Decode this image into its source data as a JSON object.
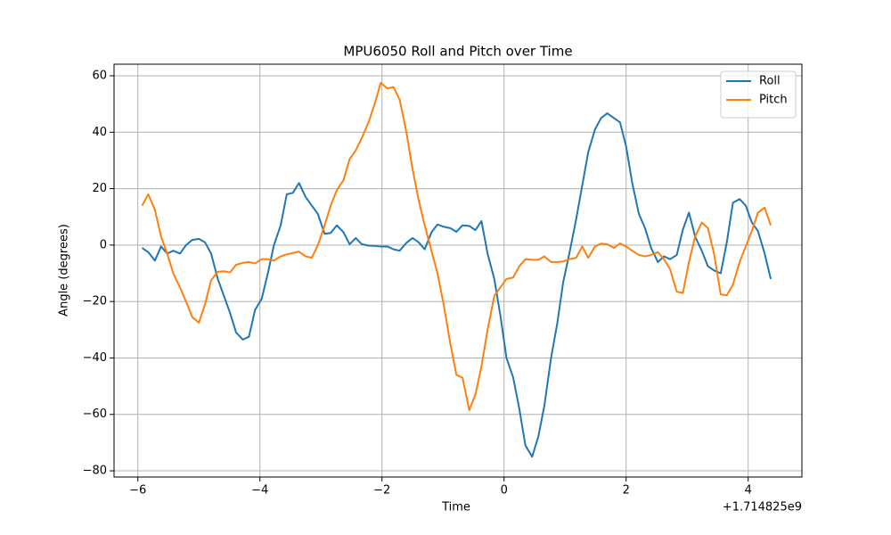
{
  "chart_data": {
    "type": "line",
    "title": "MPU6050 Roll and Pitch over Time",
    "x_label": "Time",
    "y_label": "Angle (degrees)",
    "x_offset_label": "+1.714825e9",
    "x": [
      -5.93,
      -5.83,
      -5.72,
      -5.62,
      -5.52,
      -5.42,
      -5.31,
      -5.21,
      -5.11,
      -5.0,
      -4.9,
      -4.8,
      -4.69,
      -4.59,
      -4.49,
      -4.39,
      -4.28,
      -4.18,
      -4.08,
      -3.97,
      -3.87,
      -3.77,
      -3.66,
      -3.56,
      -3.46,
      -3.36,
      -3.25,
      -3.15,
      -3.05,
      -2.94,
      -2.84,
      -2.74,
      -2.63,
      -2.53,
      -2.43,
      -2.33,
      -2.22,
      -2.12,
      -2.02,
      -1.91,
      -1.81,
      -1.71,
      -1.6,
      -1.5,
      -1.4,
      -1.3,
      -1.19,
      -1.09,
      -0.99,
      -0.88,
      -0.78,
      -0.68,
      -0.57,
      -0.47,
      -0.37,
      -0.27,
      -0.16,
      -0.06,
      0.04,
      0.15,
      0.25,
      0.35,
      0.46,
      0.56,
      0.66,
      0.77,
      0.87,
      0.97,
      1.07,
      1.18,
      1.28,
      1.38,
      1.49,
      1.59,
      1.69,
      1.8,
      1.9,
      2.0,
      2.1,
      2.21,
      2.31,
      2.41,
      2.52,
      2.62,
      2.72,
      2.83,
      2.93,
      3.03,
      3.13,
      3.24,
      3.34,
      3.44,
      3.55,
      3.65,
      3.75,
      3.86,
      3.96,
      4.06,
      4.16,
      4.27,
      4.37
    ],
    "series": [
      {
        "name": "Roll",
        "color": "#1f77b4",
        "values": [
          -1,
          -2.5,
          -5.5,
          -0.5,
          -3,
          -2,
          -3,
          0,
          1.8,
          2.2,
          1,
          -3,
          -12,
          -18,
          -24,
          -31,
          -33.5,
          -32.5,
          -23,
          -19,
          -10,
          0,
          7,
          18,
          18.5,
          22,
          17,
          14,
          11,
          4,
          4.3,
          7,
          4.5,
          0.3,
          2.5,
          0.3,
          -0.2,
          -0.3,
          -0.5,
          -0.5,
          -1.5,
          -2,
          0.8,
          2.5,
          1,
          -1.5,
          4.5,
          7.3,
          6.5,
          6,
          4.7,
          7,
          6.8,
          5.3,
          8.5,
          -3,
          -12,
          -25,
          -40,
          -47,
          -58,
          -71,
          -75,
          -68,
          -57,
          -40,
          -28,
          -13,
          -3,
          9,
          21,
          33,
          41,
          45,
          46.7,
          45,
          43.5,
          35,
          22,
          11,
          6,
          -1,
          -6,
          -4,
          -5,
          -3.5,
          5.5,
          11.5,
          3,
          -2,
          -7.5,
          -9,
          -10,
          1,
          15,
          16.3,
          14,
          8,
          5,
          -3,
          -12
        ]
      },
      {
        "name": "Pitch",
        "color": "#ff7f0e",
        "values": [
          14,
          18,
          12.5,
          3,
          -3,
          -10,
          -15,
          -20,
          -25.5,
          -27.5,
          -21,
          -12.5,
          -9.5,
          -9.3,
          -9.7,
          -7,
          -6.3,
          -6,
          -6.5,
          -5,
          -5,
          -5.5,
          -4,
          -3.3,
          -2.8,
          -2.3,
          -4,
          -4.5,
          0,
          7,
          14,
          19.5,
          23,
          30.5,
          33.5,
          38,
          43.5,
          50,
          57.5,
          55.5,
          56,
          51.5,
          40,
          27,
          16,
          7,
          -2,
          -10,
          -21,
          -35,
          -46,
          -47,
          -58.5,
          -53,
          -43,
          -30,
          -18,
          -15,
          -12,
          -11.5,
          -7.5,
          -5,
          -5.2,
          -5.2,
          -4,
          -6,
          -6,
          -5.8,
          -5,
          -4.5,
          -0.5,
          -4.5,
          -0.5,
          0.5,
          0.3,
          -1,
          0.6,
          -0.5,
          -2,
          -3.5,
          -4,
          -3.5,
          -2.5,
          -5,
          -8.5,
          -16.5,
          -17,
          -6,
          3,
          8,
          6,
          -3,
          -17.5,
          -17.8,
          -14,
          -6,
          -0.5,
          5,
          11.5,
          13.3,
          7
        ]
      }
    ],
    "xlim": [
      -6.39,
      4.88
    ],
    "ylim": [
      -82.2,
      64.1
    ],
    "xticks": [
      {
        "value": -6,
        "label": "−6"
      },
      {
        "value": -4,
        "label": "−4"
      },
      {
        "value": -2,
        "label": "−2"
      },
      0,
      2,
      4
    ],
    "yticks": [
      {
        "value": -80,
        "label": "−80"
      },
      {
        "value": -60,
        "label": "−60"
      },
      {
        "value": -40,
        "label": "−40"
      },
      {
        "value": -20,
        "label": "−20"
      },
      0,
      20,
      40,
      60
    ],
    "grid": true,
    "legend": "upper right"
  }
}
